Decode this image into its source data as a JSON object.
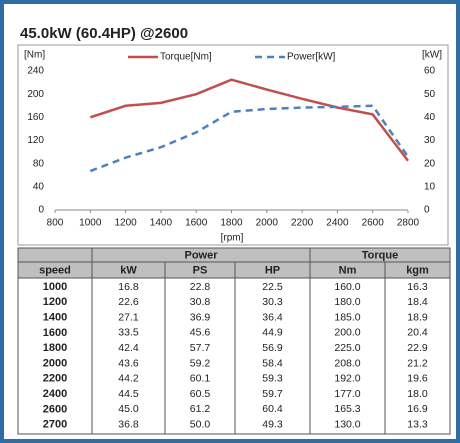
{
  "chart_data": {
    "type": "line",
    "title": "45.0kW (60.4HP) @2600",
    "ylabel": "[Nm]",
    "y2label": "[kW]",
    "xlabel": "[rpm]",
    "x": [
      1000,
      1200,
      1400,
      1600,
      1800,
      2000,
      2200,
      2400,
      2600,
      2800
    ],
    "series": [
      {
        "name": "Torque[Nm]",
        "color": "#c0504d",
        "dash": false,
        "values": [
          160,
          180,
          185,
          200,
          225,
          208,
          192,
          177,
          165,
          85
        ]
      },
      {
        "name": "Power[kW]",
        "color": "#4f81bd",
        "dash": true,
        "axis": "y2",
        "values": [
          16.8,
          22.6,
          27.1,
          33.5,
          42.4,
          43.6,
          44.2,
          44.5,
          45,
          23
        ]
      }
    ],
    "xlim": [
      800,
      2800
    ],
    "xticks": [
      800,
      1000,
      1200,
      1400,
      1600,
      1800,
      2000,
      2200,
      2400,
      2600,
      2800
    ],
    "ylim": [
      0,
      240
    ],
    "yticks": [
      0,
      40,
      80,
      120,
      160,
      200,
      240
    ],
    "y2lim": [
      0,
      60
    ],
    "y2ticks": [
      0,
      10,
      20,
      30,
      40,
      50,
      60
    ],
    "grid": false,
    "legend": "top"
  },
  "table": {
    "groups": [
      "Power",
      "Torque"
    ],
    "columns": [
      "speed",
      "kW",
      "PS",
      "HP",
      "Nm",
      "kgm"
    ],
    "rows": [
      [
        "1000",
        "16.8",
        "22.8",
        "22.5",
        "160.0",
        "16.3"
      ],
      [
        "1200",
        "22.6",
        "30.8",
        "30.3",
        "180.0",
        "18.4"
      ],
      [
        "1400",
        "27.1",
        "36.9",
        "36.4",
        "185.0",
        "18.9"
      ],
      [
        "1600",
        "33.5",
        "45.6",
        "44.9",
        "200.0",
        "20.4"
      ],
      [
        "1800",
        "42.4",
        "57.7",
        "56.9",
        "225.0",
        "22.9"
      ],
      [
        "2000",
        "43.6",
        "59.2",
        "58.4",
        "208.0",
        "21.2"
      ],
      [
        "2200",
        "44.2",
        "60.1",
        "59.3",
        "192.0",
        "19.6"
      ],
      [
        "2400",
        "44.5",
        "60.5",
        "59.7",
        "177.0",
        "18.0"
      ],
      [
        "2600",
        "45.0",
        "61.2",
        "60.4",
        "165.3",
        "16.9"
      ],
      [
        "2700",
        "36.8",
        "50.0",
        "49.3",
        "130.0",
        "13.3"
      ]
    ]
  }
}
